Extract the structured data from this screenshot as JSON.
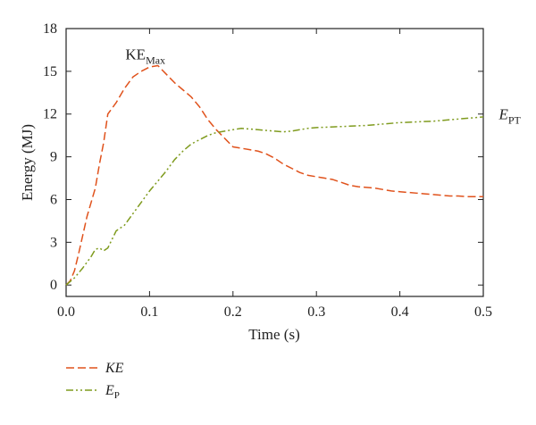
{
  "chart_data": {
    "type": "line",
    "title": "",
    "xlabel": "Time (s)",
    "ylabel": "Energy (MJ)",
    "xlim": [
      0,
      0.5
    ],
    "ylim": [
      -0.8,
      18
    ],
    "xticks": [
      0.0,
      0.1,
      0.2,
      0.3,
      0.4,
      0.5
    ],
    "xtick_labels": [
      "0.0",
      "0.1",
      "0.2",
      "0.3",
      "0.4",
      "0.5"
    ],
    "yticks": [
      0,
      3,
      6,
      9,
      12,
      15,
      18
    ],
    "ytick_labels": [
      "0",
      "3",
      "6",
      "9",
      "12",
      "15",
      "18"
    ],
    "grid": false,
    "legend_position": "bottom-left",
    "series": [
      {
        "name": "KE",
        "color": "#e0521c",
        "dash": "dashed",
        "x": [
          0.0,
          0.005,
          0.01,
          0.015,
          0.02,
          0.025,
          0.03,
          0.035,
          0.04,
          0.045,
          0.05,
          0.06,
          0.07,
          0.08,
          0.09,
          0.1,
          0.11,
          0.12,
          0.13,
          0.14,
          0.15,
          0.16,
          0.17,
          0.18,
          0.19,
          0.2,
          0.21,
          0.22,
          0.23,
          0.24,
          0.25,
          0.26,
          0.27,
          0.28,
          0.29,
          0.3,
          0.31,
          0.32,
          0.33,
          0.34,
          0.35,
          0.36,
          0.37,
          0.38,
          0.39,
          0.4,
          0.41,
          0.42,
          0.43,
          0.44,
          0.45,
          0.46,
          0.47,
          0.48,
          0.49,
          0.5
        ],
        "y": [
          0.0,
          0.3,
          1.0,
          2.2,
          3.5,
          4.8,
          5.8,
          6.8,
          8.5,
          10.0,
          12.0,
          12.8,
          13.8,
          14.6,
          15.0,
          15.3,
          15.4,
          14.8,
          14.2,
          13.7,
          13.2,
          12.5,
          11.6,
          10.9,
          10.3,
          9.7,
          9.6,
          9.5,
          9.4,
          9.2,
          8.9,
          8.5,
          8.2,
          7.9,
          7.7,
          7.6,
          7.5,
          7.4,
          7.2,
          7.0,
          6.9,
          6.85,
          6.8,
          6.7,
          6.6,
          6.55,
          6.5,
          6.45,
          6.4,
          6.35,
          6.3,
          6.25,
          6.25,
          6.2,
          6.2,
          6.2
        ]
      },
      {
        "name": "E",
        "name_sub": "P",
        "color": "#7f9b1e",
        "dash": "dash-dot-dot",
        "x": [
          0.0,
          0.01,
          0.02,
          0.03,
          0.035,
          0.04,
          0.045,
          0.05,
          0.055,
          0.06,
          0.065,
          0.07,
          0.08,
          0.09,
          0.1,
          0.11,
          0.12,
          0.13,
          0.14,
          0.15,
          0.16,
          0.17,
          0.18,
          0.19,
          0.2,
          0.21,
          0.22,
          0.23,
          0.24,
          0.25,
          0.26,
          0.27,
          0.28,
          0.29,
          0.3,
          0.32,
          0.34,
          0.36,
          0.38,
          0.4,
          0.42,
          0.44,
          0.46,
          0.48,
          0.5
        ],
        "y": [
          0.0,
          0.5,
          1.2,
          2.0,
          2.5,
          2.6,
          2.4,
          2.6,
          3.2,
          3.8,
          4.0,
          4.2,
          5.0,
          5.8,
          6.6,
          7.3,
          8.0,
          8.8,
          9.4,
          9.9,
          10.2,
          10.5,
          10.7,
          10.8,
          10.9,
          11.0,
          10.95,
          10.9,
          10.85,
          10.8,
          10.75,
          10.8,
          10.9,
          11.0,
          11.05,
          11.1,
          11.15,
          11.2,
          11.3,
          11.4,
          11.45,
          11.5,
          11.6,
          11.7,
          11.8
        ]
      }
    ],
    "annotations": [
      {
        "text": "KE",
        "sub": "Max",
        "x": 0.095,
        "y": 16.2
      },
      {
        "text": "E",
        "sub": "PT",
        "x": 0.508,
        "y": 12.0
      }
    ]
  }
}
